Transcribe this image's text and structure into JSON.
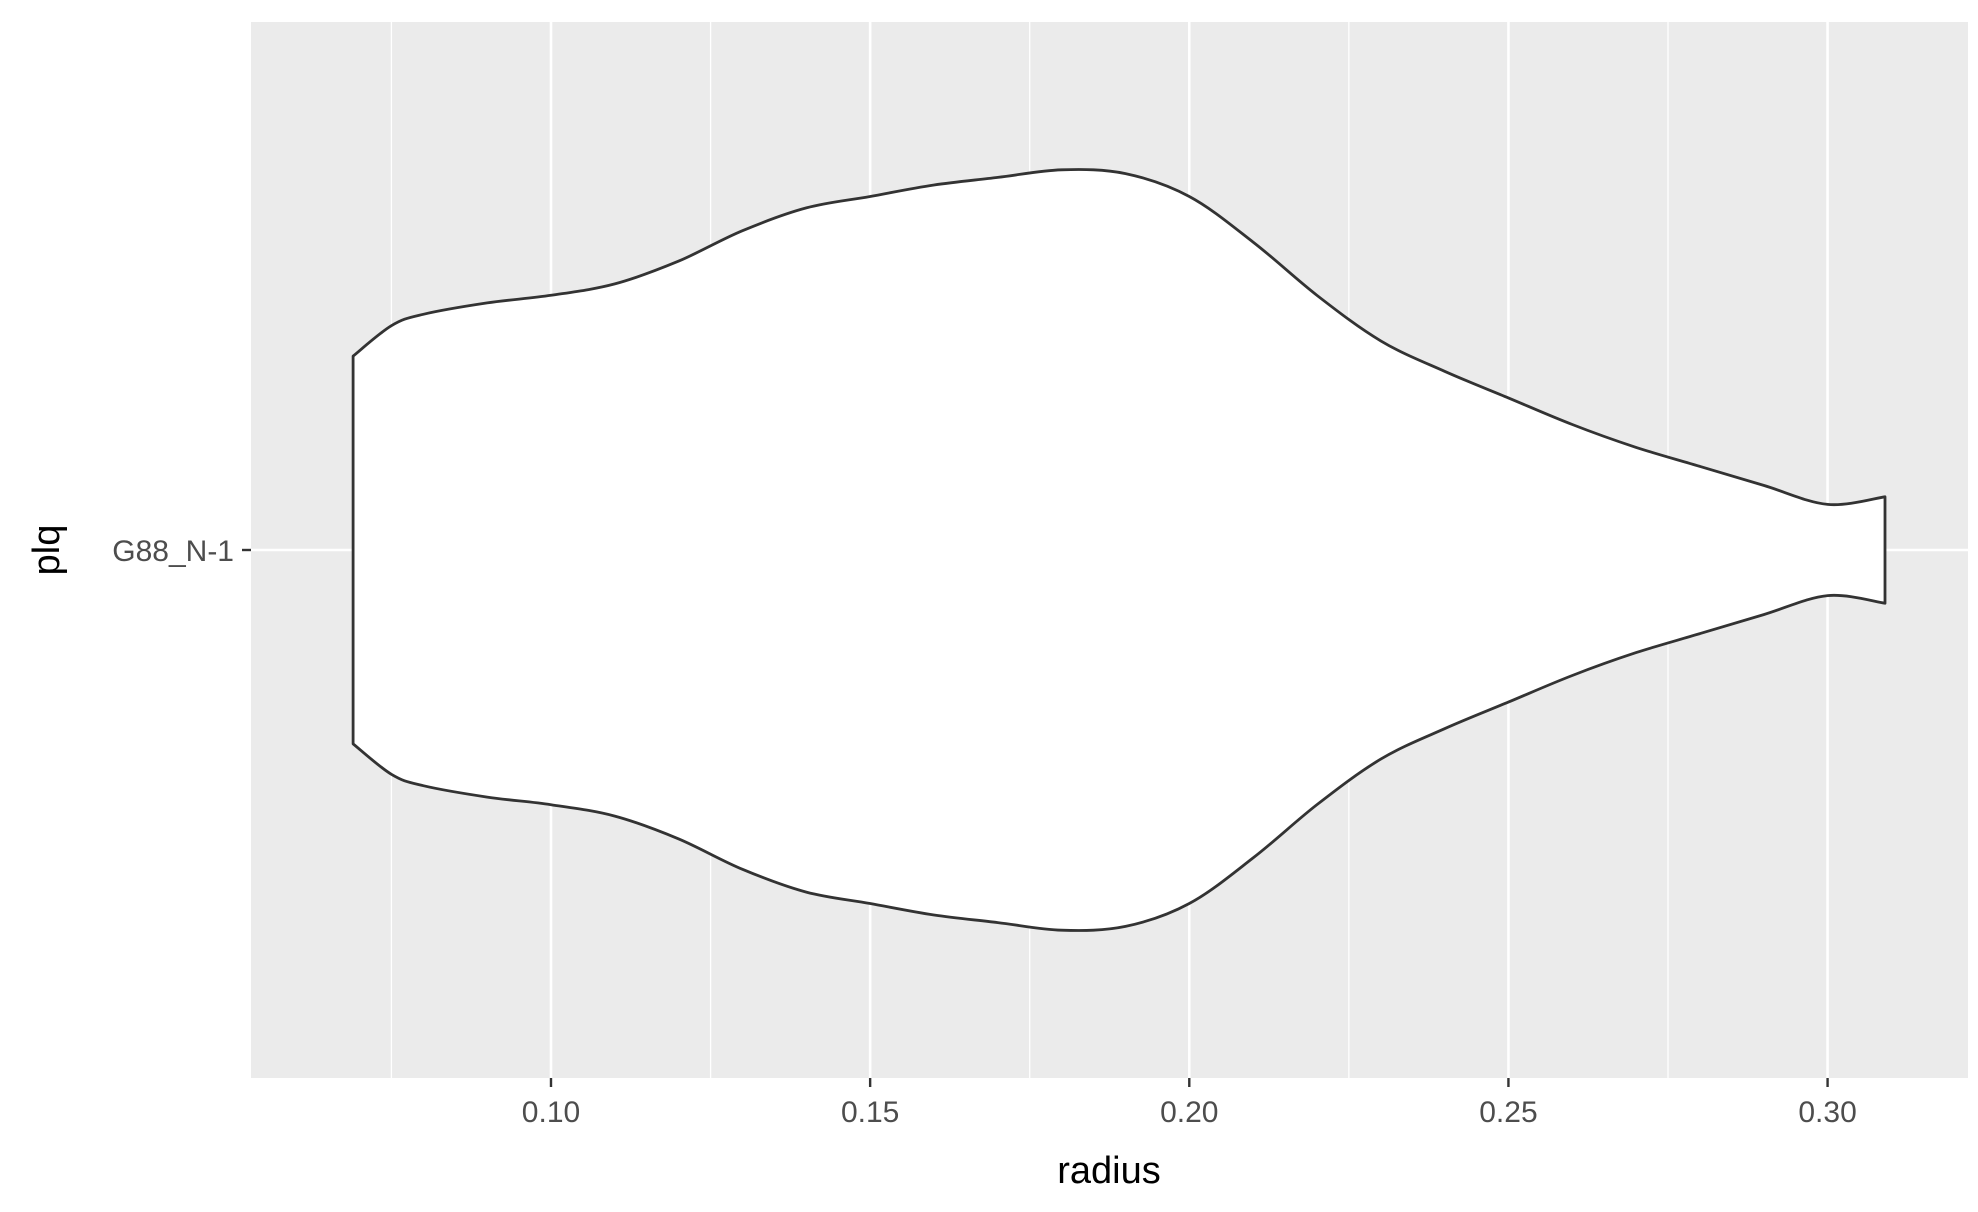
{
  "chart_data": {
    "type": "violin",
    "orientation": "horizontal",
    "xlabel": "radius",
    "ylabel": "plq",
    "categories": [
      "G88_N-1"
    ],
    "xlim": [
      0.053,
      0.322
    ],
    "x_ticks": [
      0.1,
      0.15,
      0.2,
      0.25,
      0.3
    ],
    "x_tick_labels": [
      "0.10",
      "0.15",
      "0.20",
      "0.25",
      "0.30"
    ],
    "grid": true,
    "legend": "none",
    "colors": {
      "panel_background": "#ebebeb",
      "grid": "#ffffff",
      "violin_fill": "#ffffff",
      "violin_outline": "#333333",
      "tick_text": "#4d4d4d",
      "title_text": "#000000"
    },
    "series": [
      {
        "category": "G88_N-1",
        "min": 0.069,
        "max": 0.309,
        "relative_density": [
          [
            0.069,
            0.51
          ],
          [
            0.075,
            0.59
          ],
          [
            0.08,
            0.62
          ],
          [
            0.09,
            0.65
          ],
          [
            0.1,
            0.67
          ],
          [
            0.11,
            0.7
          ],
          [
            0.12,
            0.76
          ],
          [
            0.13,
            0.84
          ],
          [
            0.14,
            0.9
          ],
          [
            0.15,
            0.93
          ],
          [
            0.16,
            0.96
          ],
          [
            0.17,
            0.98
          ],
          [
            0.18,
            1.0
          ],
          [
            0.19,
            0.99
          ],
          [
            0.2,
            0.93
          ],
          [
            0.21,
            0.81
          ],
          [
            0.22,
            0.67
          ],
          [
            0.23,
            0.55
          ],
          [
            0.24,
            0.47
          ],
          [
            0.25,
            0.4
          ],
          [
            0.26,
            0.33
          ],
          [
            0.27,
            0.27
          ],
          [
            0.28,
            0.22
          ],
          [
            0.29,
            0.17
          ],
          [
            0.3,
            0.12
          ],
          [
            0.309,
            0.14
          ]
        ]
      }
    ]
  }
}
